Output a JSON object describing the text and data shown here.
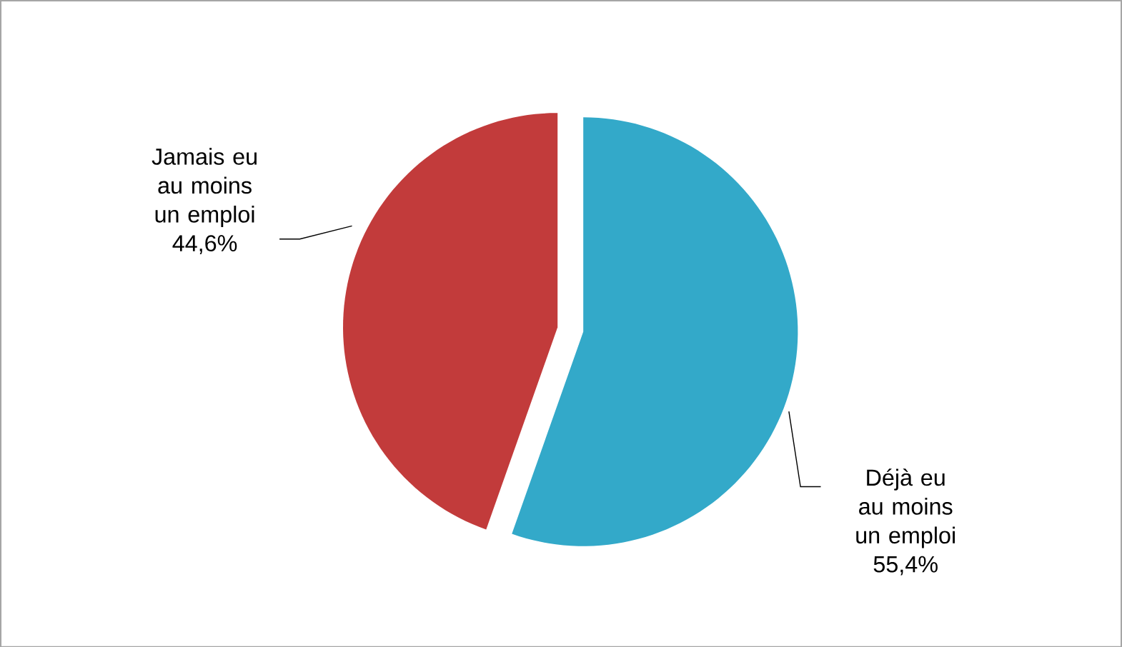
{
  "chart_data": {
    "type": "pie",
    "categories": [
      "Déjà eu au moins un emploi",
      "Jamais eu au moins un emploi"
    ],
    "values": [
      55.4,
      44.6
    ],
    "colors": [
      "#33a9c9",
      "#c23b3b"
    ],
    "value_labels": [
      "55,4%",
      "44,6%"
    ]
  }
}
